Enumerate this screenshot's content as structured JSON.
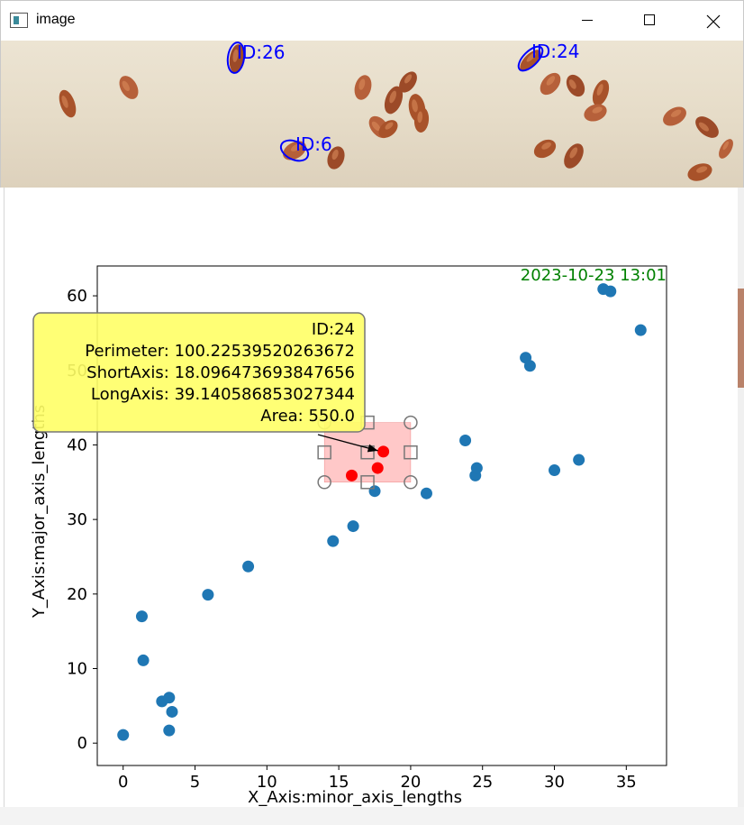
{
  "window": {
    "title": "image",
    "icon": "opencv-window-icon",
    "buttons": [
      "minimize-icon",
      "maximize-icon",
      "close-icon"
    ]
  },
  "image_labels": [
    {
      "id": "ID:26"
    },
    {
      "id": "ID:24"
    },
    {
      "id": "ID:6"
    }
  ],
  "colors": {
    "points": "#1f77b4",
    "selected": "#ff0000",
    "timestamp": "#008000",
    "tooltip": "#ffff66",
    "selection_box": "#ffb0b0",
    "label_outline": "#0000ff"
  },
  "timestamp": "2023-10-23 13:01",
  "tooltip": {
    "lines": [
      "ID:24",
      "Perimeter: 100.22539520263672",
      "ShortAxis: 18.096473693847656",
      "LongAxis: 39.140586853027344",
      "Area: 550.0"
    ]
  },
  "chart_data": {
    "type": "scatter",
    "xlabel": "X_Axis:minor_axis_lengths",
    "ylabel": "Y_Axis:major_axis_lengths",
    "xlim": [
      -1.8,
      37.8
    ],
    "ylim": [
      -3,
      64
    ],
    "x_ticks": [
      0,
      5,
      10,
      15,
      20,
      25,
      30,
      35
    ],
    "y_ticks": [
      0,
      10,
      20,
      30,
      40,
      50,
      60
    ],
    "points": [
      [
        0,
        1.1
      ],
      [
        1.3,
        17
      ],
      [
        1.4,
        11.1
      ],
      [
        2.7,
        5.6
      ],
      [
        3.2,
        6.1
      ],
      [
        3.4,
        4.2
      ],
      [
        3.2,
        1.7
      ],
      [
        5.9,
        19.9
      ],
      [
        8.7,
        23.7
      ],
      [
        14.6,
        27.1
      ],
      [
        16.0,
        29.1
      ],
      [
        17.5,
        33.8
      ],
      [
        21.1,
        33.5
      ],
      [
        23.8,
        40.6
      ],
      [
        24.5,
        35.9
      ],
      [
        24.6,
        36.9
      ],
      [
        28.0,
        51.7
      ],
      [
        28.3,
        50.6
      ],
      [
        30.0,
        36.6
      ],
      [
        31.7,
        38.0
      ],
      [
        33.4,
        60.9
      ],
      [
        33.9,
        60.6
      ],
      [
        36.0,
        55.4
      ]
    ],
    "selected_points": [
      [
        18.1,
        39.1
      ],
      [
        17.7,
        36.9
      ],
      [
        15.9,
        35.9
      ]
    ],
    "selection_box": {
      "x": [
        14,
        20
      ],
      "y": [
        35,
        43
      ]
    },
    "annotated_point": [
      18.1,
      39.1
    ]
  }
}
